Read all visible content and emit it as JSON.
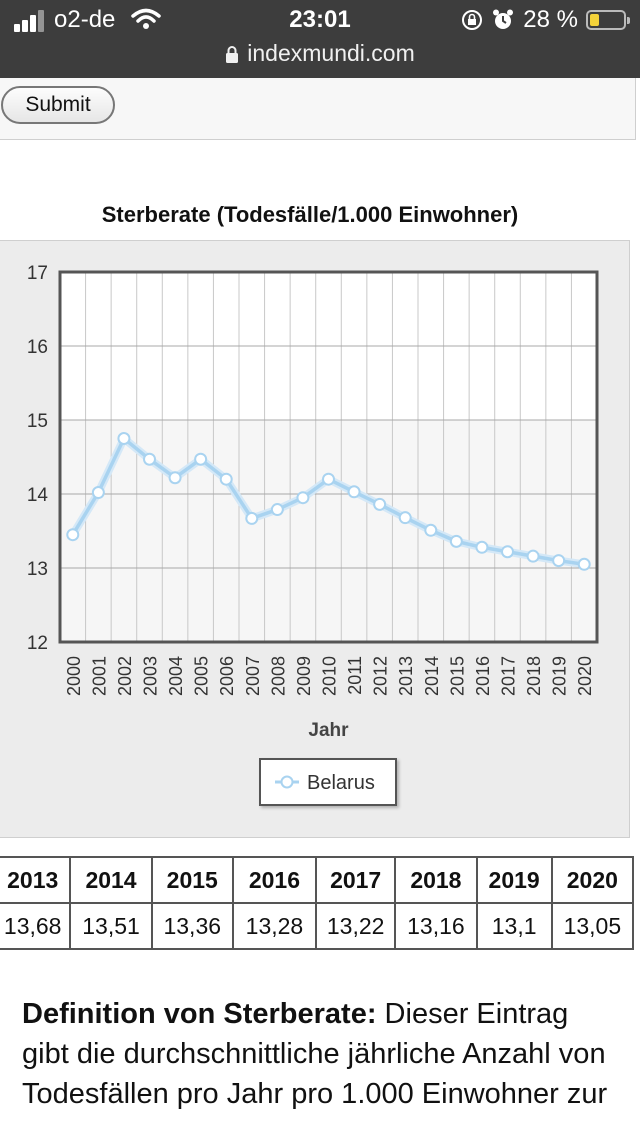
{
  "status_bar": {
    "carrier": "o2-de",
    "time": "23:01",
    "battery_percent": "28 %",
    "battery_level": 0.28,
    "url": "indexmundi.com"
  },
  "form": {
    "submit_label": "Submit"
  },
  "chart": {
    "title": "Sterberate (Todesfälle/1.000 Einwohner)",
    "legend_label": "Belarus"
  },
  "chart_data": {
    "type": "line",
    "title": "Sterberate (Todesfälle/1.000 Einwohner)",
    "xlabel": "Jahr",
    "ylabel": "",
    "ylim": [
      12,
      17
    ],
    "yticks": [
      12,
      13,
      14,
      15,
      16,
      17
    ],
    "grid": true,
    "legend": "bottom-center",
    "x": [
      "2000",
      "2001",
      "2002",
      "2003",
      "2004",
      "2005",
      "2006",
      "2007",
      "2008",
      "2009",
      "2010",
      "2011",
      "2012",
      "2013",
      "2014",
      "2015",
      "2016",
      "2017",
      "2018",
      "2019",
      "2020"
    ],
    "series": [
      {
        "name": "Belarus",
        "values": [
          13.45,
          14.02,
          14.75,
          14.47,
          14.22,
          14.47,
          14.2,
          13.67,
          13.79,
          13.95,
          14.2,
          14.03,
          13.86,
          13.68,
          13.51,
          13.36,
          13.28,
          13.22,
          13.16,
          13.1,
          13.05
        ]
      }
    ],
    "line_color": "#a9d3f0"
  },
  "table": {
    "years": [
      "2013",
      "2014",
      "2015",
      "2016",
      "2017",
      "2018",
      "2019",
      "2020"
    ],
    "values": [
      "13,68",
      "13,51",
      "13,36",
      "13,28",
      "13,22",
      "13,16",
      "13,1",
      "13,05"
    ]
  },
  "definition": {
    "term": "Definition von Sterberate:",
    "text": " Dieser Eintrag gibt die durchschnittliche jährliche Anzahl von Todesfällen pro Jahr pro 1.000 Einwohner zur"
  }
}
